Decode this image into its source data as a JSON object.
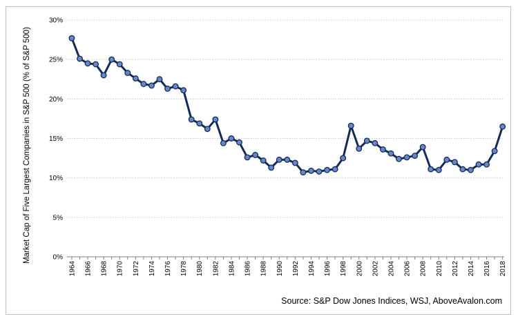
{
  "chart_data": {
    "type": "line",
    "title": "",
    "ylabel": "Market Cap of Five Largest Companies in S&P 500 (% of S&P 500)",
    "xlabel": "",
    "ylim": [
      0,
      30
    ],
    "yticks": [
      0,
      5,
      10,
      15,
      20,
      25,
      30
    ],
    "ytick_labels": [
      "0%",
      "5%",
      "10%",
      "15%",
      "20%",
      "25%",
      "30%"
    ],
    "xlim": [
      1964,
      2018
    ],
    "xticks": [
      1964,
      1966,
      1968,
      1970,
      1972,
      1974,
      1976,
      1978,
      1980,
      1982,
      1984,
      1986,
      1988,
      1990,
      1992,
      1994,
      1996,
      1998,
      2000,
      2002,
      2004,
      2006,
      2008,
      2010,
      2012,
      2014,
      2016,
      2018
    ],
    "xtick_labels": [
      "1964",
      "1966",
      "1968",
      "1970",
      "1972",
      "1974",
      "1976",
      "1978",
      "1980",
      "1982",
      "1984",
      "1986",
      "1988",
      "1990",
      "1992",
      "1994",
      "1996",
      "1998",
      "2000",
      "2002",
      "2004",
      "2006",
      "2008",
      "2010",
      "2012",
      "2014",
      "2016",
      "2018"
    ],
    "grid": "horizontal-dotted",
    "line_color": "#0f2a5c",
    "marker_color": "#6b87c3",
    "source": "Source: S&P Dow Jones Indices, WSJ, AboveAvalon.com",
    "series": [
      {
        "x": [
          1964,
          1965,
          1966,
          1967,
          1968,
          1969,
          1970,
          1971,
          1972,
          1973,
          1974,
          1975,
          1976,
          1977,
          1978,
          1979,
          1980,
          1981,
          1982,
          1983,
          1984,
          1985,
          1986,
          1987,
          1988,
          1989,
          1990,
          1991,
          1992,
          1993,
          1994,
          1995,
          1996,
          1997,
          1998,
          1999,
          2000,
          2001,
          2002,
          2003,
          2004,
          2005,
          2006,
          2007,
          2008,
          2009,
          2010,
          2011,
          2012,
          2013,
          2014,
          2015,
          2016,
          2017,
          2018
        ],
        "values": [
          27.7,
          25.1,
          24.5,
          24.4,
          23.0,
          25.0,
          24.4,
          23.3,
          22.6,
          21.9,
          21.7,
          22.5,
          21.3,
          21.6,
          21.1,
          17.4,
          16.9,
          16.2,
          17.4,
          14.4,
          15.0,
          14.5,
          12.6,
          12.9,
          12.2,
          11.3,
          12.3,
          12.3,
          11.9,
          10.7,
          10.9,
          10.8,
          11.0,
          11.1,
          12.5,
          16.6,
          13.7,
          14.7,
          14.4,
          13.6,
          13.1,
          12.4,
          12.6,
          12.8,
          13.9,
          11.1,
          11.0,
          12.3,
          12.0,
          11.1,
          11.0,
          11.7,
          11.7,
          13.4,
          16.5
        ]
      }
    ]
  }
}
